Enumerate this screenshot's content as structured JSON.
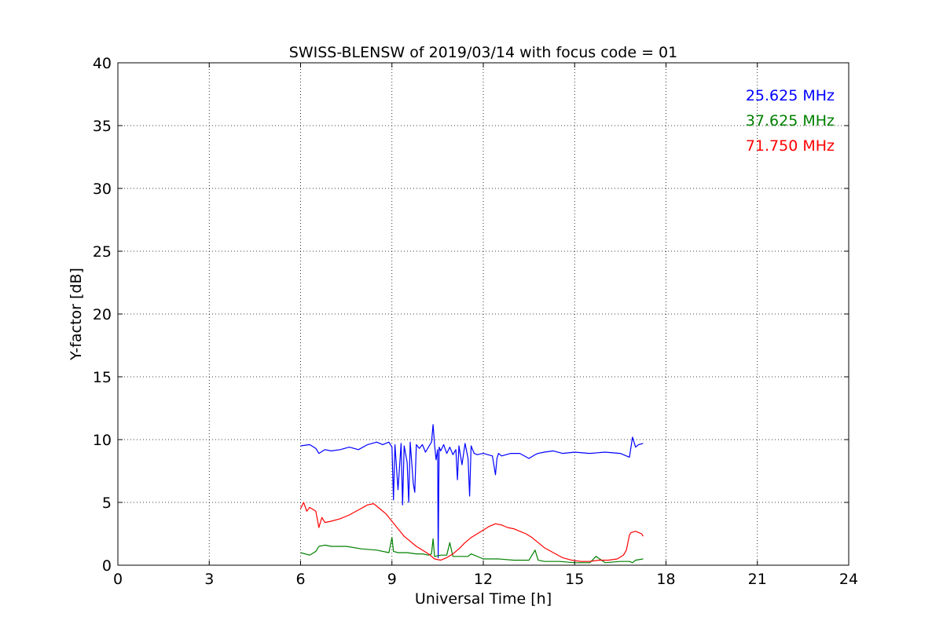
{
  "chart_data": {
    "type": "line",
    "title": "SWISS-BLENSW of 2019/03/14 with focus code = 01",
    "xlabel": "Universal Time [h]",
    "ylabel": "Y-factor [dB]",
    "xlim": [
      0,
      24
    ],
    "ylim": [
      0,
      40
    ],
    "xticks": [
      0,
      3,
      6,
      9,
      12,
      15,
      18,
      21,
      24
    ],
    "xtick_labels": [
      "0",
      "3",
      "6",
      "9",
      "12",
      "15",
      "18",
      "21",
      "24"
    ],
    "yticks": [
      0,
      5,
      10,
      15,
      20,
      25,
      30,
      35,
      40
    ],
    "ytick_labels": [
      "0",
      "5",
      "10",
      "15",
      "20",
      "25",
      "30",
      "35",
      "40"
    ],
    "grid": true,
    "legend_position": "top-right",
    "series": [
      {
        "name": "25.625 MHz",
        "color": "#0000ff",
        "x": [
          6.0,
          6.3,
          6.5,
          6.6,
          6.8,
          7.0,
          7.3,
          7.6,
          7.9,
          8.2,
          8.5,
          8.7,
          8.9,
          9.0,
          9.05,
          9.1,
          9.2,
          9.3,
          9.35,
          9.4,
          9.5,
          9.55,
          9.6,
          9.7,
          9.75,
          9.8,
          9.9,
          10.0,
          10.1,
          10.2,
          10.3,
          10.35,
          10.4,
          10.45,
          10.5,
          10.52,
          10.55,
          10.6,
          10.7,
          10.8,
          10.9,
          11.0,
          11.1,
          11.15,
          11.2,
          11.3,
          11.4,
          11.5,
          11.55,
          11.6,
          11.7,
          11.8,
          12.0,
          12.3,
          12.4,
          12.45,
          12.5,
          12.6,
          12.9,
          13.2,
          13.5,
          13.7,
          13.8,
          14.0,
          14.3,
          14.6,
          15.0,
          15.5,
          16.0,
          16.5,
          16.8,
          16.9,
          17.0,
          17.1,
          17.25
        ],
        "y": [
          9.5,
          9.6,
          9.3,
          8.9,
          9.2,
          9.1,
          9.2,
          9.4,
          9.2,
          9.6,
          9.8,
          9.6,
          9.8,
          9.4,
          5.2,
          9.6,
          6.0,
          9.7,
          4.8,
          9.5,
          8.2,
          5.0,
          9.8,
          6.5,
          5.8,
          9.6,
          9.3,
          9.6,
          9.0,
          9.4,
          9.8,
          11.2,
          9.6,
          8.4,
          9.2,
          0.6,
          9.4,
          9.1,
          9.6,
          8.9,
          9.4,
          8.8,
          9.2,
          6.8,
          9.5,
          8.0,
          9.7,
          8.5,
          5.5,
          9.5,
          8.9,
          8.8,
          8.9,
          8.7,
          7.2,
          8.5,
          8.9,
          8.7,
          8.9,
          8.9,
          8.5,
          8.8,
          8.9,
          9.0,
          9.1,
          8.9,
          9.0,
          8.9,
          9.0,
          8.9,
          8.6,
          10.2,
          9.4,
          9.6,
          9.7
        ]
      },
      {
        "name": "37.625 MHz",
        "color": "#008000",
        "x": [
          6.0,
          6.3,
          6.5,
          6.6,
          6.8,
          7.0,
          7.5,
          8.0,
          8.5,
          8.9,
          9.0,
          9.05,
          9.2,
          9.5,
          9.8,
          10.0,
          10.2,
          10.3,
          10.35,
          10.4,
          10.6,
          10.8,
          10.9,
          11.0,
          11.5,
          11.6,
          12.0,
          12.5,
          13.0,
          13.5,
          13.7,
          13.8,
          14.0,
          14.5,
          15.0,
          15.5,
          15.7,
          16.0,
          16.5,
          16.8,
          16.9,
          17.0,
          17.25
        ],
        "y": [
          1.0,
          0.8,
          1.1,
          1.5,
          1.6,
          1.5,
          1.5,
          1.3,
          1.2,
          1.0,
          2.2,
          1.1,
          1.0,
          1.0,
          0.9,
          0.9,
          0.8,
          0.9,
          2.1,
          0.7,
          0.8,
          0.8,
          1.8,
          0.7,
          0.7,
          0.9,
          0.5,
          0.5,
          0.4,
          0.4,
          1.2,
          0.4,
          0.3,
          0.3,
          0.2,
          0.2,
          0.7,
          0.2,
          0.3,
          0.3,
          0.2,
          0.4,
          0.5
        ]
      },
      {
        "name": "71.750 MHz",
        "color": "#ff0000",
        "x": [
          6.0,
          6.1,
          6.2,
          6.3,
          6.5,
          6.6,
          6.7,
          6.8,
          7.0,
          7.3,
          7.6,
          7.9,
          8.2,
          8.4,
          8.6,
          8.8,
          9.0,
          9.2,
          9.4,
          9.6,
          9.8,
          10.0,
          10.2,
          10.4,
          10.6,
          10.8,
          11.0,
          11.2,
          11.4,
          11.6,
          11.8,
          12.0,
          12.2,
          12.4,
          12.6,
          12.8,
          13.0,
          13.2,
          13.4,
          13.6,
          13.8,
          14.0,
          14.3,
          14.6,
          14.9,
          15.2,
          15.5,
          15.8,
          16.1,
          16.4,
          16.6,
          16.7,
          16.8,
          16.85,
          17.0,
          17.2,
          17.25
        ],
        "y": [
          4.5,
          5.0,
          4.3,
          4.6,
          4.3,
          3.0,
          3.8,
          3.4,
          3.5,
          3.7,
          4.0,
          4.4,
          4.8,
          4.9,
          4.5,
          4.1,
          3.5,
          2.9,
          2.3,
          1.9,
          1.5,
          1.2,
          0.9,
          0.5,
          0.4,
          0.6,
          0.9,
          1.3,
          1.8,
          2.2,
          2.5,
          2.8,
          3.1,
          3.3,
          3.2,
          3.0,
          2.9,
          2.7,
          2.5,
          2.2,
          1.8,
          1.4,
          1.0,
          0.6,
          0.4,
          0.3,
          0.3,
          0.4,
          0.4,
          0.5,
          0.8,
          1.2,
          2.4,
          2.6,
          2.7,
          2.5,
          2.3
        ]
      }
    ]
  }
}
